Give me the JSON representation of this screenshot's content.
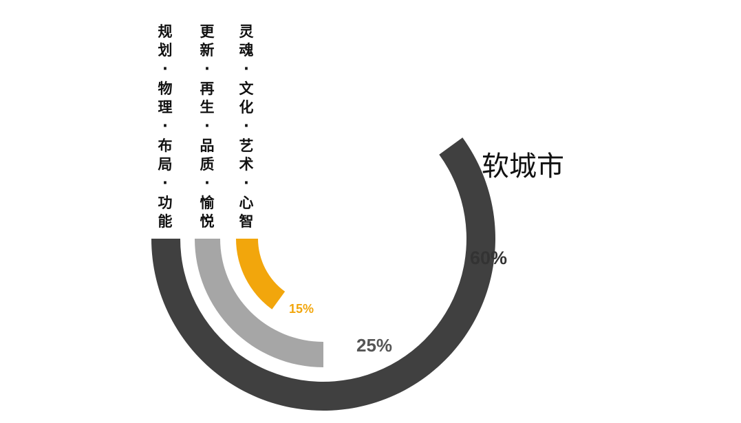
{
  "chart_data": {
    "type": "radial-bar",
    "title": "软城市",
    "series": [
      {
        "label": "规划·物理·布局·功能",
        "value": 60,
        "value_label": "60%",
        "color": "#404040",
        "label_color": "#333333"
      },
      {
        "label": "更新·再生·品质·愉悦",
        "value": 25,
        "value_label": "25%",
        "color": "#a6a6a6",
        "label_color": "#555555"
      },
      {
        "label": "灵魂·文化·艺术·心智",
        "value": 15,
        "value_label": "15%",
        "color": "#f2a60c",
        "label_color": "#f2a60c"
      }
    ]
  }
}
